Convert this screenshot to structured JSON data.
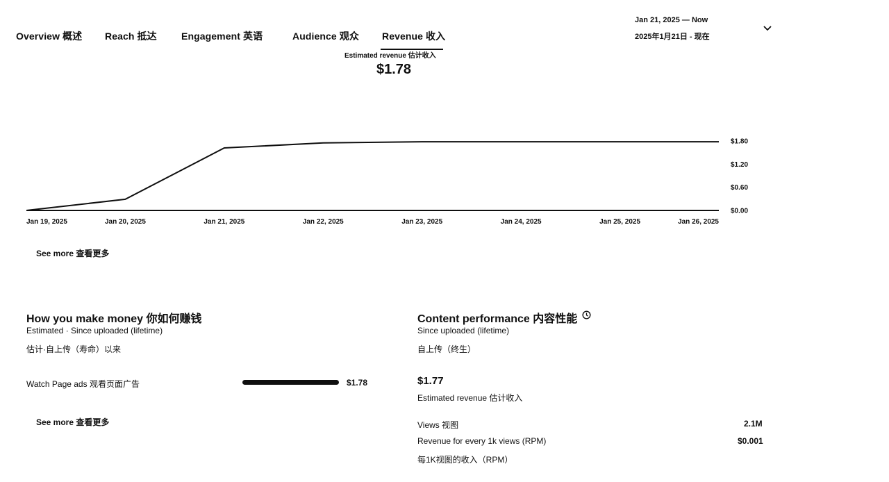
{
  "tabs": [
    {
      "label": "Overview  概述"
    },
    {
      "label": "Reach  抵达"
    },
    {
      "label": "Engagement   英语"
    },
    {
      "label": "Audience  观众"
    },
    {
      "label": "Revenue  收入"
    }
  ],
  "date_range": {
    "line1": "Jan 21, 2025 — Now",
    "line2": "2025年1月21日 - 现在"
  },
  "metric": {
    "label": "Estimated revenue  估计收入",
    "value": "$1.78"
  },
  "chart_data": {
    "type": "line",
    "x": [
      "Jan 19, 2025",
      "Jan 20, 2025",
      "Jan 21, 2025",
      "Jan 22, 2025",
      "Jan 23, 2025",
      "Jan 24, 2025",
      "Jan 25, 2025",
      "Jan 26, 2025"
    ],
    "series": [
      {
        "values": [
          0.0,
          0.29,
          1.62,
          1.75,
          1.78,
          1.78,
          1.78,
          1.78
        ]
      }
    ],
    "y_ticks": [
      "$1.80",
      "$1.20",
      "$0.60",
      "$0.00"
    ],
    "ylim": [
      0,
      1.8
    ],
    "axis_side": "right",
    "grid": false
  },
  "see_more_1": "See more  查看更多",
  "money": {
    "title": "How you make money  你如何赚钱",
    "sub1": "Estimated · Since uploaded (lifetime)",
    "sub2": "估计·自上传（寿命）以来",
    "row_label": "Watch Page ads  观看页面广告",
    "row_value": "$1.78",
    "row_fraction": 1.0,
    "see_more": "See more  查看更多"
  },
  "content": {
    "title": "Content performance  内容性能",
    "sub1": "Since uploaded (lifetime)",
    "sub2": "自上传（终生）",
    "revenue_value": "$1.77",
    "revenue_label": "Estimated revenue  估计收入",
    "views_label": "Views  视图",
    "views_value": "2.1M",
    "rpm_label": "Revenue for every 1k views (RPM)",
    "rpm_value": "$0.001",
    "rpm_label_cn": "每1K视图的收入（RPM）"
  },
  "icons": {
    "dropdown": "chevron-down-icon",
    "info": "clock-icon"
  }
}
